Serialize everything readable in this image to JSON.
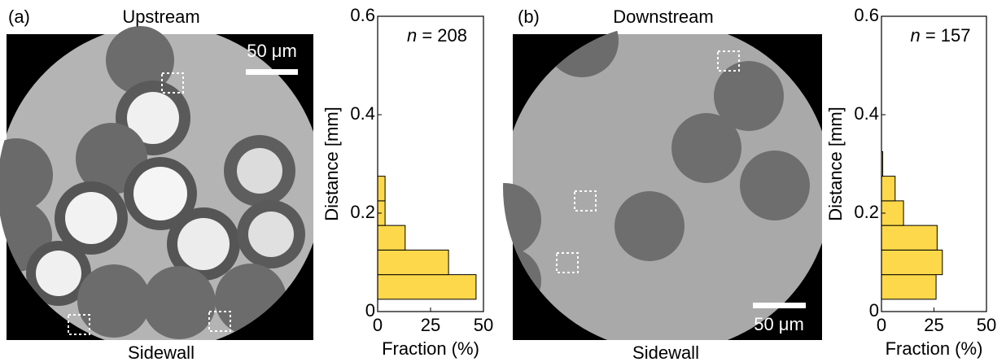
{
  "panels": [
    {
      "label": "(a)",
      "title": "Upstream",
      "bottom": "Sidewall",
      "scale_bar": "50 μm"
    },
    {
      "label": "(b)",
      "title": "Downstream",
      "bottom": "Sidewall",
      "scale_bar": "50 μm"
    }
  ],
  "chart_data": [
    {
      "type": "histogram",
      "orientation": "horizontal",
      "annotation": {
        "italic": "n",
        "text": " = 208"
      },
      "bins": [
        0.025,
        0.075,
        0.125,
        0.175,
        0.225,
        0.275
      ],
      "values": [
        46.5,
        33.5,
        13,
        3.5,
        3.5
      ],
      "color": "#fdd84a",
      "xlabel": "Fraction (%)",
      "ylabel": "Distance [mm]",
      "xlim": [
        0,
        50
      ],
      "xticks": [
        0,
        25,
        50
      ],
      "ylim": [
        0,
        0.6
      ],
      "yticks": [
        0,
        0.2,
        0.4,
        0.6
      ]
    },
    {
      "type": "histogram",
      "orientation": "horizontal",
      "annotation": {
        "italic": "n",
        "text": " = 157"
      },
      "bins": [
        0.025,
        0.075,
        0.125,
        0.175,
        0.225,
        0.275,
        0.325
      ],
      "values": [
        26,
        29,
        26.5,
        10.5,
        6.5,
        0.6
      ],
      "color": "#fdd84a",
      "xlabel": "Fraction (%)",
      "ylabel": "Distance [mm]",
      "xlim": [
        0,
        50
      ],
      "xticks": [
        0,
        25,
        50
      ],
      "ylim": [
        0,
        0.6
      ],
      "yticks": [
        0,
        0.2,
        0.4,
        0.6
      ]
    }
  ]
}
